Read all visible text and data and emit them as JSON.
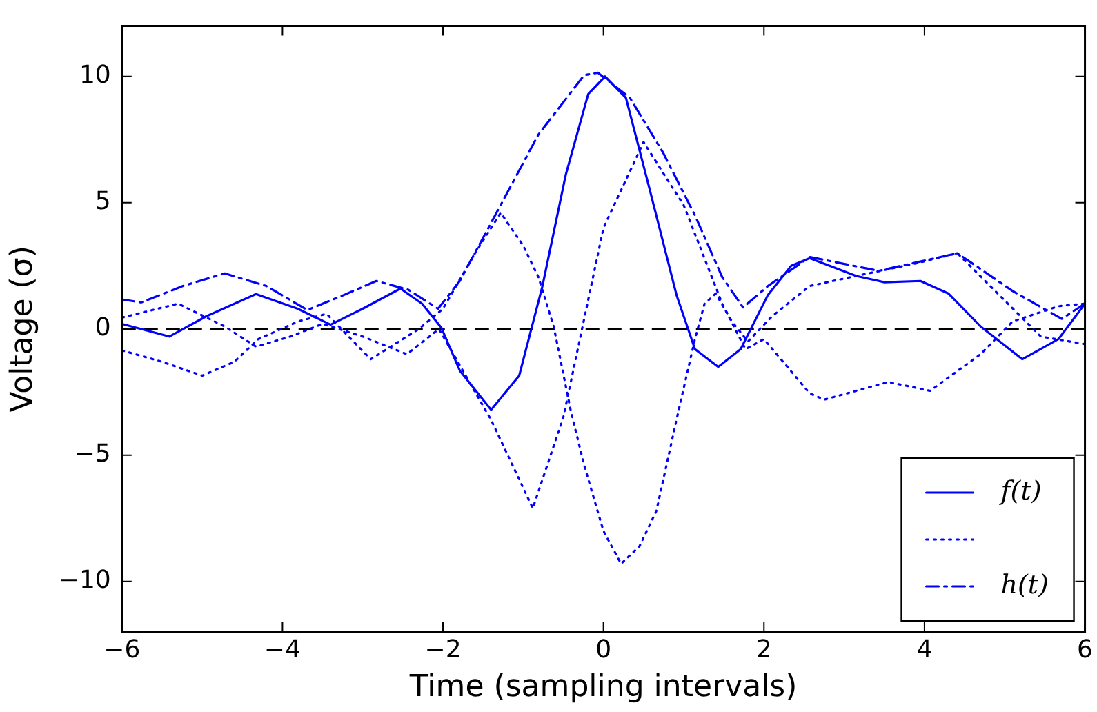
{
  "chart_data": {
    "type": "line",
    "xlabel": "Time (sampling intervals)",
    "ylabel": "Voltage (σ)",
    "xlim": [
      -6,
      6
    ],
    "ylim": [
      -12,
      12
    ],
    "xticks": [
      -6,
      -4,
      -2,
      0,
      2,
      4,
      6
    ],
    "yticks": [
      -10,
      -5,
      0,
      5,
      10
    ],
    "grid": false,
    "legend": "bottom right",
    "marker": "none",
    "ref_lines": [
      {
        "axis": "y",
        "value": 0,
        "color": "#000000",
        "line_style": "dashed"
      }
    ],
    "series": [
      {
        "name": "f(t)",
        "color": "#0000ff",
        "line_style": "solid",
        "x": [
          -6,
          -5.41,
          -4.95,
          -4.33,
          -3.81,
          -3.4,
          -3.0,
          -2.53,
          -2.26,
          -2.02,
          -1.79,
          -1.4,
          -1.05,
          -0.76,
          -0.47,
          -0.19,
          0.02,
          0.28,
          0.57,
          0.91,
          1.14,
          1.43,
          1.71,
          2.05,
          2.34,
          2.57,
          3.15,
          3.5,
          3.95,
          4.3,
          4.7,
          5.22,
          5.67,
          6.0
        ],
        "values": [
          0.2,
          -0.3,
          0.5,
          1.38,
          0.8,
          0.17,
          0.8,
          1.6,
          1.0,
          0.05,
          -1.65,
          -3.2,
          -1.85,
          1.7,
          6.1,
          9.3,
          10.0,
          9.15,
          5.6,
          1.35,
          -0.8,
          -1.5,
          -0.8,
          1.35,
          2.5,
          2.8,
          2.1,
          1.85,
          1.9,
          1.4,
          0.1,
          -1.2,
          -0.4,
          1.0
        ]
      },
      {
        "color": "#0000ff",
        "line_style": "dotted",
        "x": [
          -6,
          -5.5,
          -5.0,
          -4.6,
          -4.3,
          -3.8,
          -3.45,
          -2.9,
          -2.3,
          -2.0,
          -1.6,
          -1.28,
          -1.0,
          -0.81,
          -0.62,
          -0.41,
          -0.24,
          0.0,
          0.22,
          0.45,
          0.66,
          0.91,
          1.14,
          1.26,
          1.4,
          1.6,
          1.8,
          2.1,
          2.57,
          3.15,
          3.9,
          4.41,
          4.93,
          5.45,
          6.0
        ],
        "values": [
          -0.85,
          -1.3,
          -1.85,
          -1.3,
          -0.4,
          0.3,
          0.6,
          -1.2,
          0.0,
          0.8,
          3.0,
          4.6,
          3.3,
          2.05,
          0.1,
          -3.2,
          -5.4,
          -8.0,
          -9.3,
          -8.6,
          -7.2,
          -3.6,
          -0.4,
          1.0,
          1.4,
          0.3,
          -0.5,
          0.5,
          1.7,
          2.1,
          2.6,
          3.0,
          1.35,
          -0.3,
          -0.6
        ]
      },
      {
        "name": "h(t)",
        "color": "#0000ff",
        "line_style": "dashdot",
        "x": [
          -6,
          -5.76,
          -5.24,
          -4.72,
          -4.2,
          -3.69,
          -3.23,
          -2.83,
          -2.43,
          -2.06,
          -1.79,
          -1.4,
          -0.81,
          -0.24,
          -0.07,
          0.33,
          0.74,
          1.14,
          1.48,
          1.74,
          2.05,
          2.57,
          3.43,
          4.41,
          5.1,
          5.71,
          6.0
        ],
        "values": [
          1.17,
          1.05,
          1.7,
          2.2,
          1.7,
          0.75,
          1.35,
          1.9,
          1.55,
          0.8,
          1.9,
          4.2,
          7.7,
          10.05,
          10.15,
          9.15,
          7.0,
          4.5,
          2.05,
          0.85,
          1.7,
          2.85,
          2.3,
          3.0,
          1.5,
          0.4,
          1.0
        ]
      },
      {
        "color": "#0000ff",
        "line_style": "dotted",
        "x": [
          -6,
          -5.3,
          -4.72,
          -4.33,
          -3.9,
          -3.5,
          -3.0,
          -2.45,
          -2.05,
          -1.4,
          -0.88,
          -0.5,
          0.0,
          0.5,
          1.0,
          1.48,
          1.77,
          2.0,
          2.57,
          2.75,
          3.55,
          4.07,
          4.7,
          5.1,
          5.67,
          6.0
        ],
        "values": [
          0.45,
          1.0,
          0.1,
          -0.7,
          -0.3,
          0.2,
          -0.3,
          -1.0,
          0.0,
          -3.6,
          -7.1,
          -3.5,
          4.0,
          7.4,
          4.9,
          1.0,
          -0.8,
          -0.4,
          -2.55,
          -2.8,
          -2.1,
          -2.45,
          -1.0,
          0.3,
          0.9,
          1.0
        ]
      }
    ]
  }
}
